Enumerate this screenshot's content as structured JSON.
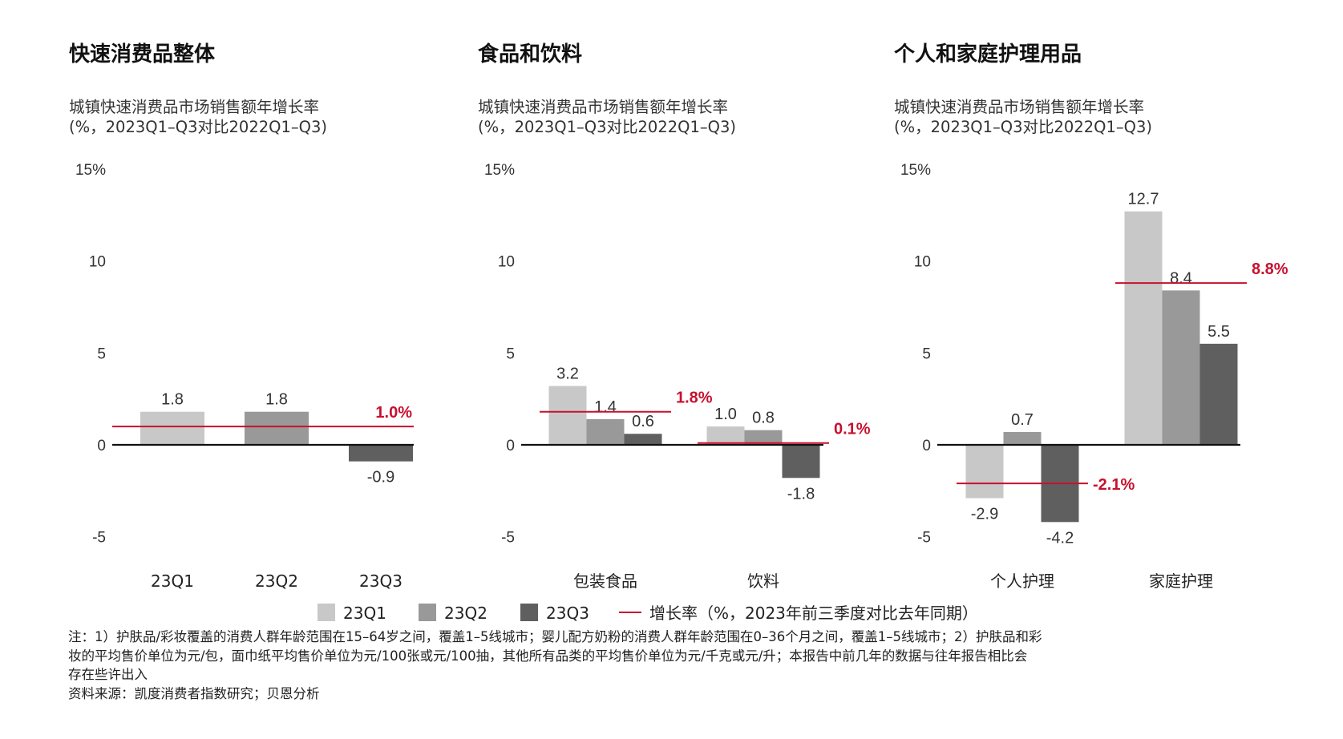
{
  "chart_data": [
    {
      "type": "bar",
      "title": "快速消费品整体",
      "subtitle_line1": "城镇快速消费品市场销售额年增长率",
      "subtitle_line2": "(%，2023Q1–Q3对比2022Q1–Q3)",
      "ylim": [
        -5,
        15
      ],
      "yticks": [
        "15%",
        "10",
        "5",
        "0",
        "-5"
      ],
      "ytick_values": [
        15,
        10,
        5,
        0,
        -5
      ],
      "categories": [
        "23Q1",
        "23Q2",
        "23Q3"
      ],
      "series": [
        {
          "name": "23Q1",
          "values": [
            1.8,
            null,
            null
          ]
        },
        {
          "name": "23Q2",
          "values": [
            null,
            1.8,
            null
          ]
        },
        {
          "name": "23Q3",
          "values": [
            null,
            null,
            -0.9
          ]
        }
      ],
      "growth_rate": {
        "value": 1.0,
        "label": "1.0%"
      }
    },
    {
      "type": "bar",
      "title": "食品和饮料",
      "subtitle_line1": "城镇快速消费品市场销售额年增长率",
      "subtitle_line2": "(%，2023Q1–Q3对比2022Q1–Q3)",
      "ylim": [
        -5,
        15
      ],
      "yticks": [
        "15%",
        "10",
        "5",
        "0",
        "-5"
      ],
      "ytick_values": [
        15,
        10,
        5,
        0,
        -5
      ],
      "categories": [
        "包装食品",
        "饮料"
      ],
      "series": [
        {
          "name": "23Q1",
          "values": [
            3.2,
            1.0
          ]
        },
        {
          "name": "23Q2",
          "values": [
            1.4,
            0.8
          ]
        },
        {
          "name": "23Q3",
          "values": [
            0.6,
            -1.8
          ]
        }
      ],
      "growth_rates": [
        {
          "value": 1.8,
          "label": "1.8%"
        },
        {
          "value": 0.1,
          "label": "0.1%"
        }
      ]
    },
    {
      "type": "bar",
      "title": "个人和家庭护理用品",
      "subtitle_line1": "城镇快速消费品市场销售额年增长率",
      "subtitle_line2": "(%，2023Q1–Q3对比2022Q1–Q3)",
      "ylim": [
        -5,
        15
      ],
      "yticks": [
        "15%",
        "10",
        "5",
        "0",
        "-5"
      ],
      "ytick_values": [
        15,
        10,
        5,
        0,
        -5
      ],
      "categories": [
        "个人护理",
        "家庭护理"
      ],
      "series": [
        {
          "name": "23Q1",
          "values": [
            -2.9,
            12.7
          ]
        },
        {
          "name": "23Q2",
          "values": [
            0.7,
            8.4
          ]
        },
        {
          "name": "23Q3",
          "values": [
            -4.2,
            5.5
          ]
        }
      ],
      "growth_rates": [
        {
          "value": -2.1,
          "label": "-2.1%"
        },
        {
          "value": 8.8,
          "label": "8.8%"
        }
      ]
    }
  ],
  "legend": {
    "items": [
      {
        "label": "23Q1",
        "color": "#c8c8c8"
      },
      {
        "label": "23Q2",
        "color": "#999999"
      },
      {
        "label": "23Q3",
        "color": "#5f5f5f"
      }
    ],
    "rate_label": "增长率（%，2023年前三季度对比去年同期）",
    "rate_color": "#c8102e"
  },
  "notes": {
    "line1": "注：1）护肤品/彩妆覆盖的消费人群年龄范围在15–64岁之间，覆盖1–5线城市；婴儿配方奶粉的消费人群年龄范围在0–36个月之间，覆盖1–5线城市；2）护肤品和彩",
    "line2": "妆的平均售价单位为元/包，面巾纸平均售价单位为元/100张或元/100抽，其他所有品类的平均售价单位为元/千克或元/升；本报告中前几年的数据与往年报告相比会",
    "line3": "存在些许出入",
    "source": "资料来源：凯度消费者指数研究；贝恩分析"
  }
}
